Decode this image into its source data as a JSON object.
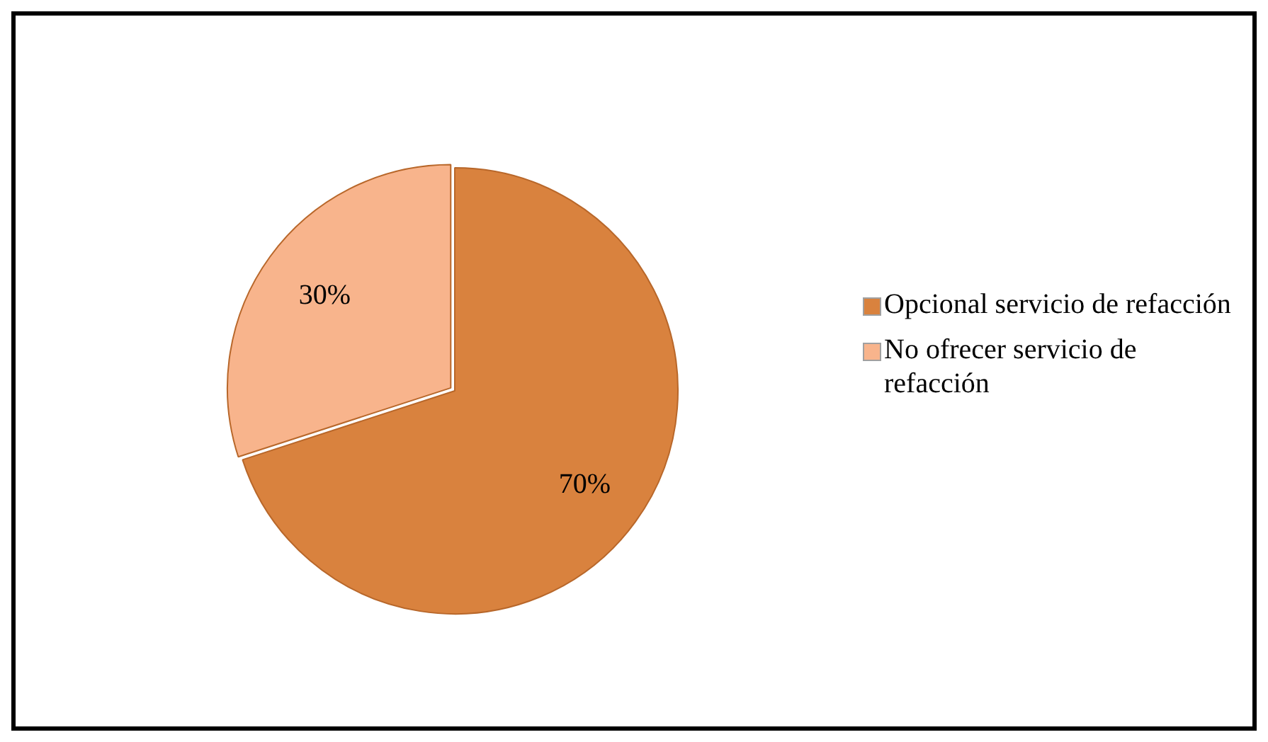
{
  "chart_data": {
    "type": "pie",
    "categories": [
      "Opcional servicio de refacción",
      "No ofrecer servicio de refacción"
    ],
    "values": [
      70,
      30
    ],
    "colors": [
      "#d9823e",
      "#f8b48c"
    ],
    "value_labels": [
      "70%",
      "30%"
    ],
    "legend": "right"
  }
}
